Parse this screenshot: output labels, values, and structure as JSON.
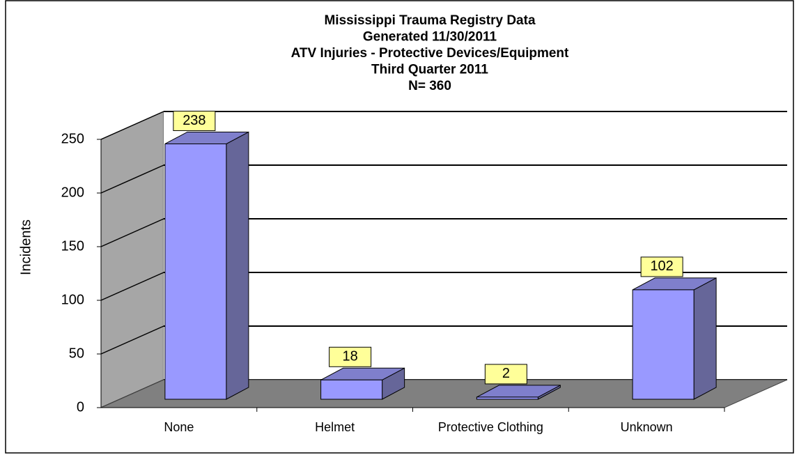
{
  "chart_data": {
    "type": "bar3d",
    "title": [
      "Mississippi Trauma Registry Data",
      "Generated 11/30/2011",
      "ATV Injuries - Protective Devices/Equipment",
      "Third Quarter 2011",
      "N= 360"
    ],
    "y_label": "Incidents",
    "categories": [
      "None",
      "Helmet",
      "Protective Clothing",
      "Unknown"
    ],
    "values": [
      238,
      18,
      2,
      102
    ],
    "color": "#9999ff",
    "ylim": [
      0,
      250
    ],
    "yticks": [
      0,
      50,
      100,
      150,
      200,
      250
    ],
    "grid": true
  }
}
